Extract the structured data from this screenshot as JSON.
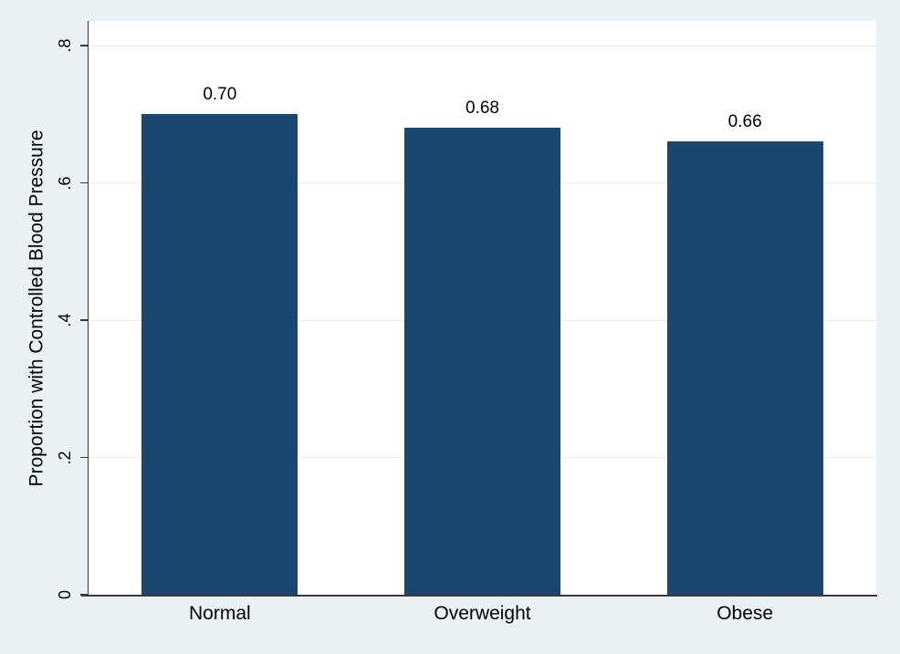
{
  "chart_data": {
    "type": "bar",
    "title": "",
    "categories": [
      "Normal",
      "Overweight",
      "Obese"
    ],
    "values": [
      0.7,
      0.68,
      0.66
    ],
    "value_labels": [
      "0.70",
      "0.68",
      "0.66"
    ],
    "xlabel": "",
    "ylabel": "Proportion with Controlled Blood Pressure",
    "ylim": [
      0,
      0.836
    ],
    "yticks": [
      0,
      0.2,
      0.4,
      0.6,
      0.8
    ],
    "ytick_labels": [
      "0",
      ".2",
      ".4",
      ".6",
      ".8"
    ],
    "grid": true,
    "legend": "none",
    "colors": {
      "bar": "#1a476f",
      "background": "#eaf1f3",
      "plot_background": "#ffffff",
      "gridline": "#e4edf0",
      "axis": "#3a3a3a",
      "text": "#000000"
    }
  }
}
